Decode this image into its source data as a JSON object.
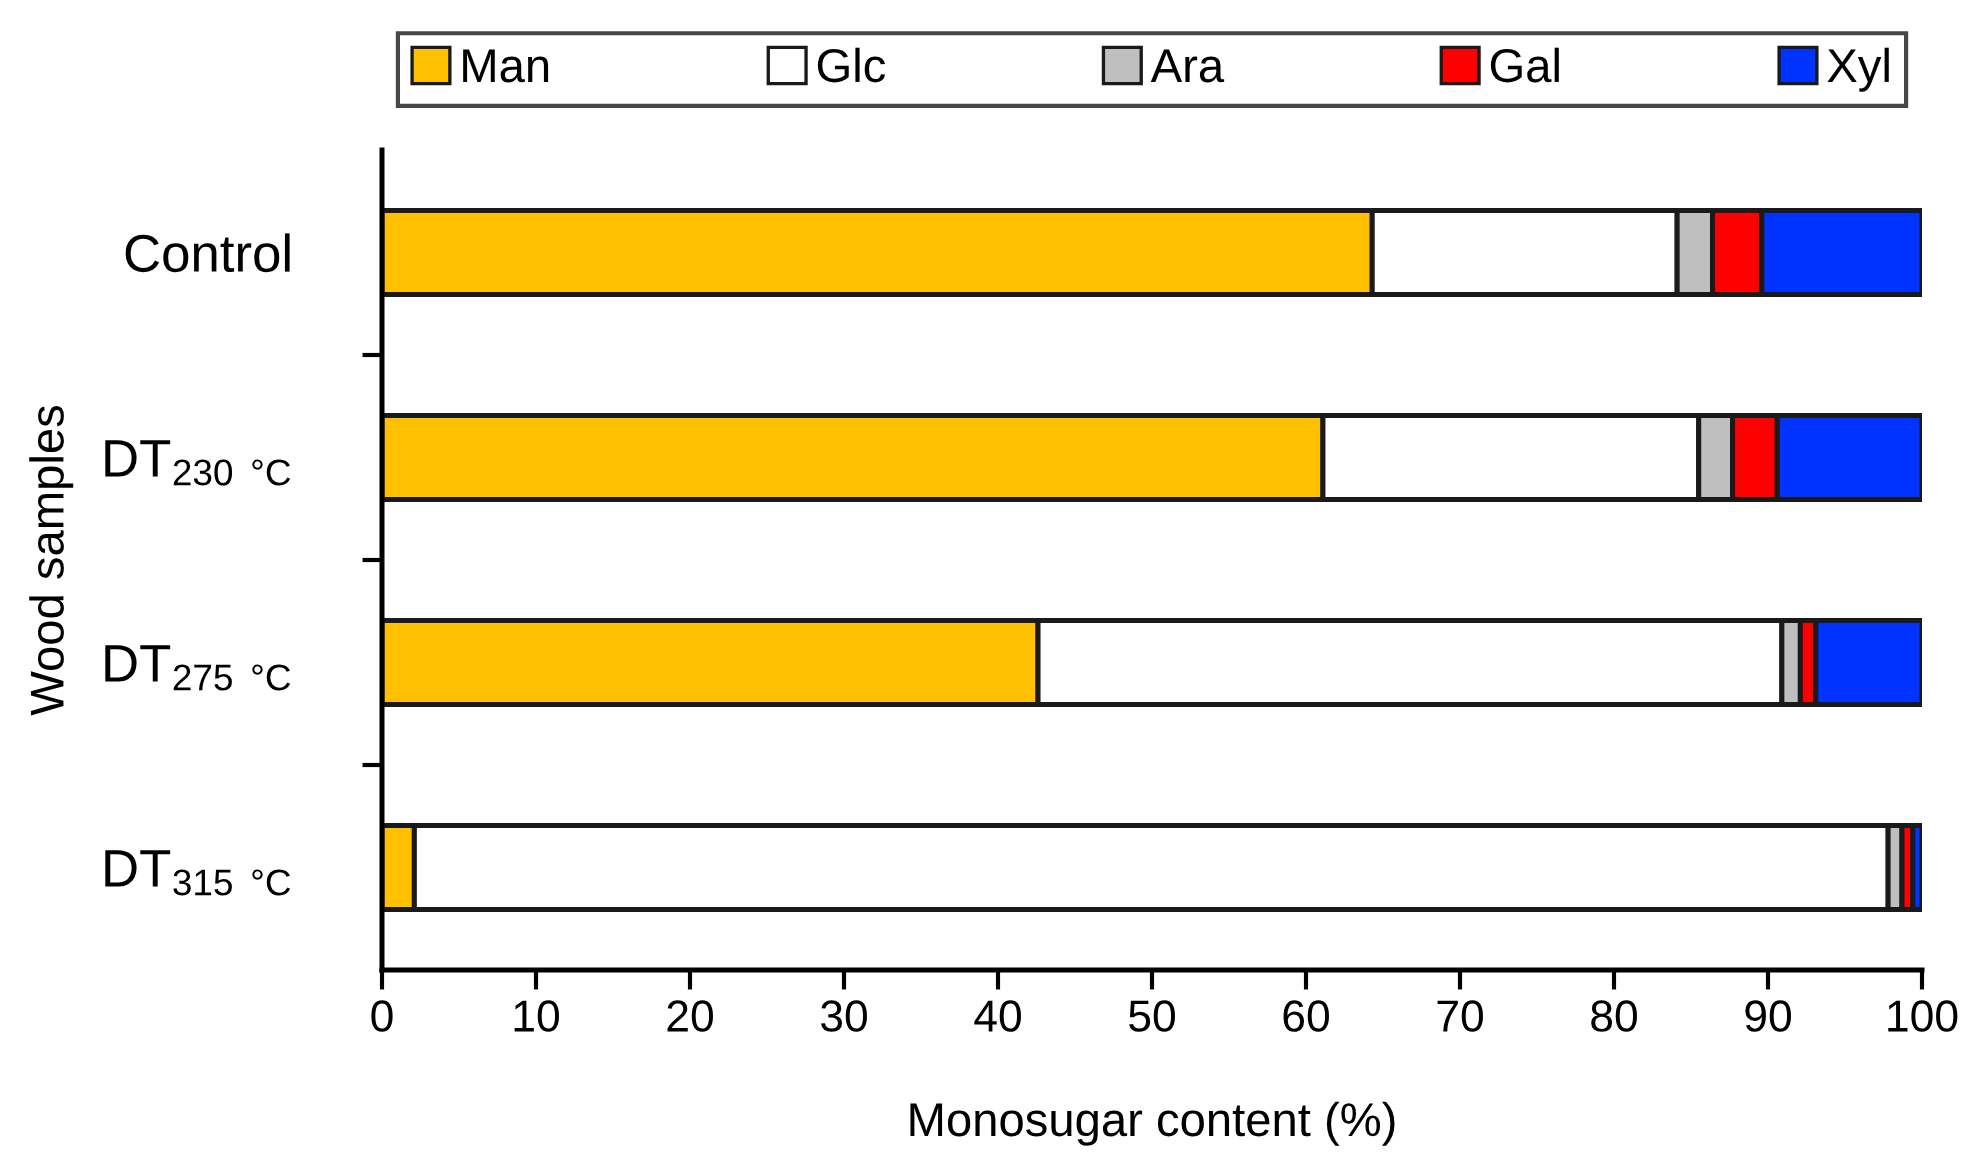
{
  "chart_data": {
    "type": "bar",
    "orientation": "horizontal",
    "stacked": true,
    "xlabel": "Monosugar content (%)",
    "ylabel": "Wood samples",
    "categories": [
      "Control",
      "DT$_{230 °C}$",
      "DT$_{275 °C}$",
      "DT$_{315 °C}$"
    ],
    "series": [
      {
        "name": "Man",
        "color": "#ffc000",
        "values": [
          64.3,
          61.1,
          42.6,
          2.1
        ]
      },
      {
        "name": "Glc",
        "color": "#ffffff",
        "values": [
          19.8,
          24.4,
          48.3,
          95.7
        ]
      },
      {
        "name": "Ara",
        "color": "#bfbfbf",
        "values": [
          2.3,
          2.2,
          1.2,
          0.9
        ]
      },
      {
        "name": "Gal",
        "color": "#ff0000",
        "values": [
          3.2,
          2.9,
          1.0,
          0.7
        ]
      },
      {
        "name": "Xyl",
        "color": "#0033ff",
        "values": [
          10.4,
          9.4,
          6.9,
          0.6
        ]
      }
    ],
    "xlim": [
      0,
      100
    ],
    "xticks": [
      0,
      10,
      20,
      30,
      40,
      50,
      60,
      70,
      80,
      90,
      100
    ],
    "legend": "top",
    "grid": false
  }
}
